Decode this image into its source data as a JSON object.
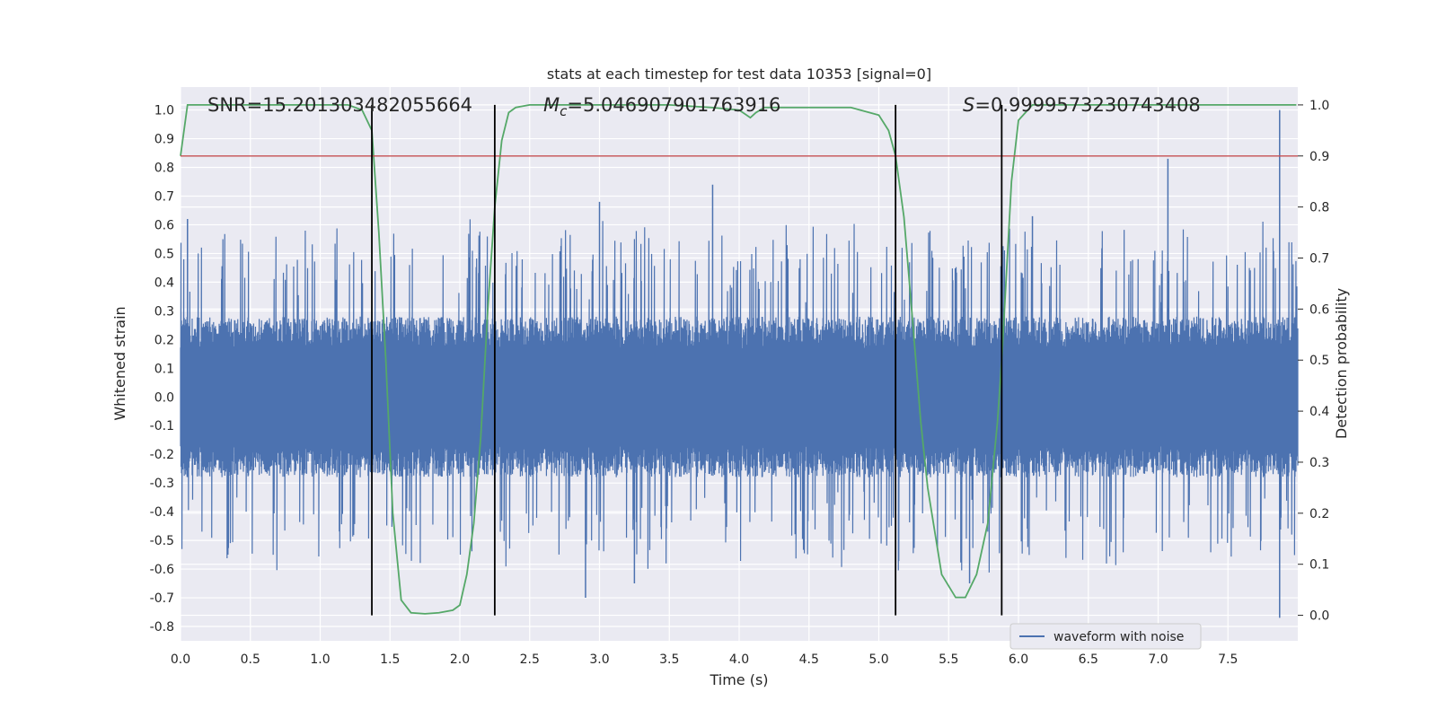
{
  "chart_data": {
    "type": "line",
    "title": "stats at each timestep for test data 10353 [signal=0]",
    "xlabel": "Time (s)",
    "ylabel": "Whitened strain",
    "y2label": "Detection probability",
    "xlim": [
      0.0,
      8.0
    ],
    "ylim": [
      -0.85,
      1.08
    ],
    "y2lim": [
      -0.05,
      1.035
    ],
    "xticks": [
      "0.0",
      "0.5",
      "1.0",
      "1.5",
      "2.0",
      "2.5",
      "3.0",
      "3.5",
      "4.0",
      "4.5",
      "5.0",
      "5.5",
      "6.0",
      "6.5",
      "7.0",
      "7.5"
    ],
    "yticks": [
      "-0.8",
      "-0.7",
      "-0.6",
      "-0.5",
      "-0.4",
      "-0.3",
      "-0.2",
      "-0.1",
      "0.0",
      "0.1",
      "0.2",
      "0.3",
      "0.4",
      "0.5",
      "0.6",
      "0.7",
      "0.8",
      "0.9",
      "1.0"
    ],
    "y2ticks": [
      "0.0",
      "0.1",
      "0.2",
      "0.3",
      "0.4",
      "0.5",
      "0.6",
      "0.7",
      "0.8",
      "0.9",
      "1.0"
    ],
    "grid": true,
    "legend": {
      "placement": "lower-center-right",
      "entries": [
        "waveform with noise"
      ]
    },
    "annotations": {
      "snr": "SNR=15.201303482055664",
      "mc_symbol": "M",
      "mc_sub": "c",
      "mc_value": "=5.046907901763916",
      "s_symbol": "S",
      "s_value": "=0.9999573230743408"
    },
    "threshold": 0.9,
    "vlines": [
      1.37,
      2.25,
      5.12,
      5.88
    ],
    "series": [
      {
        "name": "waveform with noise",
        "axis": "left",
        "color": "#4c72b0",
        "envelope_level": 0.28,
        "peaks": [
          [
            7.87,
            1.0
          ],
          [
            7.87,
            -0.77
          ],
          [
            7.07,
            0.83
          ],
          [
            3.81,
            0.74
          ],
          [
            5.65,
            -0.65
          ],
          [
            3.0,
            0.68
          ],
          [
            2.9,
            -0.7
          ],
          [
            3.25,
            -0.65
          ],
          [
            6.1,
            0.63
          ],
          [
            0.05,
            0.62
          ]
        ]
      },
      {
        "axis": "right",
        "color": "#55a868",
        "x": [
          0.0,
          0.05,
          0.1,
          0.2,
          0.4,
          0.6,
          0.8,
          1.0,
          1.2,
          1.3,
          1.37,
          1.42,
          1.47,
          1.52,
          1.58,
          1.65,
          1.75,
          1.85,
          1.95,
          2.0,
          2.05,
          2.1,
          2.15,
          2.2,
          2.25,
          2.3,
          2.35,
          2.4,
          2.5,
          2.7,
          3.0,
          3.5,
          3.8,
          4.0,
          4.08,
          4.12,
          4.18,
          4.25,
          4.5,
          4.8,
          5.0,
          5.07,
          5.12,
          5.18,
          5.25,
          5.3,
          5.35,
          5.45,
          5.55,
          5.62,
          5.7,
          5.78,
          5.85,
          5.88,
          5.95,
          6.0,
          6.1,
          6.3,
          6.6,
          7.0,
          7.5,
          7.99
        ],
        "values": [
          0.9,
          1.0,
          1.0,
          1.0,
          1.0,
          1.0,
          1.0,
          1.0,
          1.0,
          0.99,
          0.95,
          0.75,
          0.5,
          0.2,
          0.03,
          0.005,
          0.003,
          0.005,
          0.01,
          0.02,
          0.08,
          0.18,
          0.35,
          0.6,
          0.8,
          0.93,
          0.985,
          0.995,
          1.0,
          1.0,
          1.0,
          1.0,
          0.995,
          0.99,
          0.975,
          0.985,
          0.995,
          0.995,
          0.995,
          0.995,
          0.98,
          0.95,
          0.9,
          0.78,
          0.55,
          0.38,
          0.25,
          0.08,
          0.035,
          0.035,
          0.08,
          0.18,
          0.38,
          0.5,
          0.85,
          0.97,
          1.0,
          1.0,
          1.0,
          1.0,
          1.0,
          1.0
        ]
      },
      {
        "axis": "right",
        "color": "#c44e52",
        "x": [
          0.0,
          8.0
        ],
        "values": [
          0.9,
          0.9
        ]
      }
    ]
  }
}
